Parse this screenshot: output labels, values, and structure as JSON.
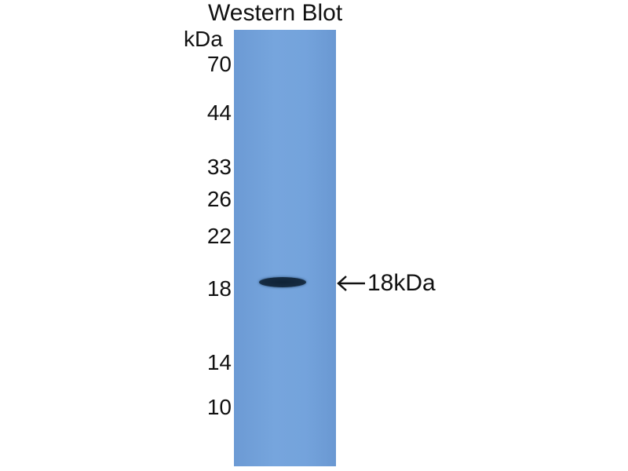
{
  "title": "Western Blot",
  "unit": "kDa",
  "markers": [
    "70",
    "44",
    "33",
    "26",
    "22",
    "18",
    "14",
    "10"
  ],
  "band_label": "18kDa",
  "colors": {
    "membrane": "#74a3dc",
    "band": "#152a40"
  }
}
